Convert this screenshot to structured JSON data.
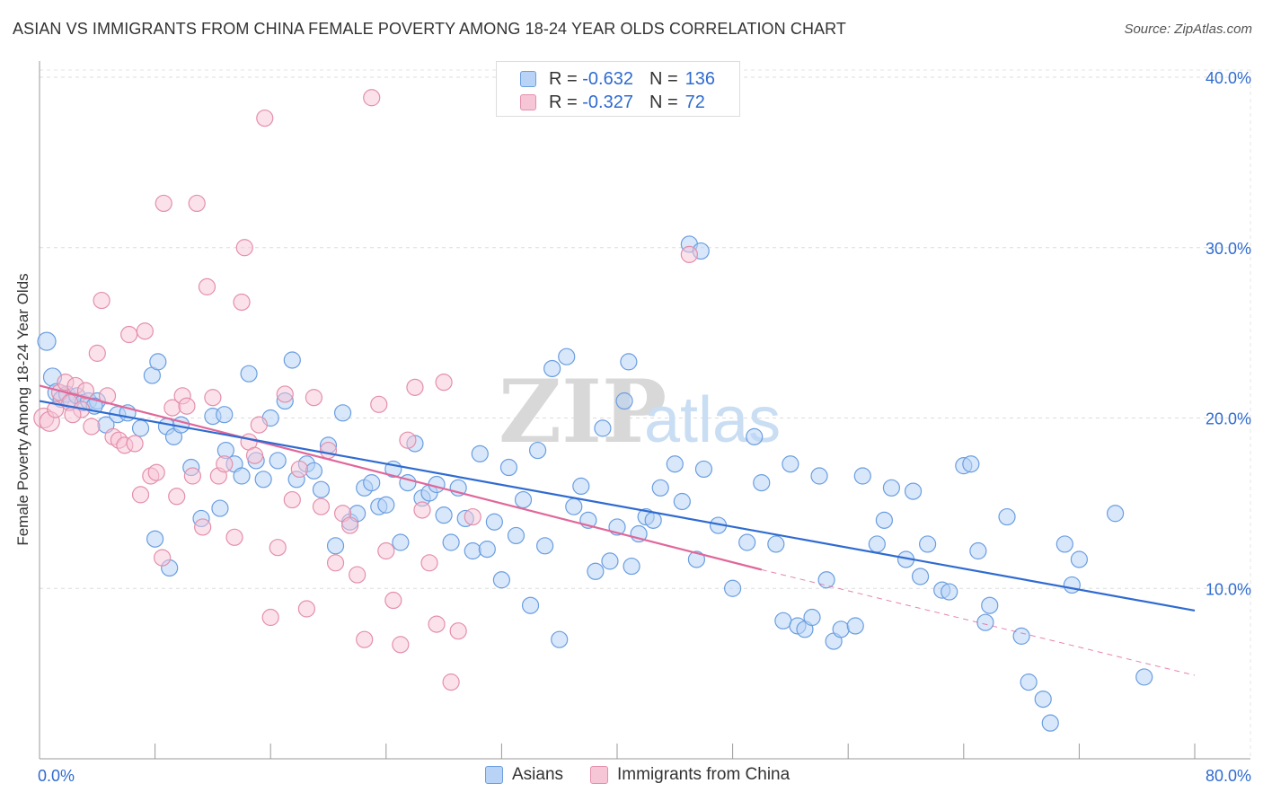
{
  "title": "ASIAN VS IMMIGRANTS FROM CHINA FEMALE POVERTY AMONG 18-24 YEAR OLDS CORRELATION CHART",
  "source": "Source: ZipAtlas.com",
  "watermark": "ZIPatlas",
  "legend": {
    "r_label": "R =",
    "n_label": "N =",
    "rows": [
      {
        "name": "Asians",
        "r": "-0.632",
        "n": "136",
        "fill": "#b8d3f5",
        "stroke": "#6a9ee0"
      },
      {
        "name": "Immigrants from China",
        "r": "-0.327",
        "n": "72",
        "fill": "#f7c6d6",
        "stroke": "#e48fab"
      }
    ]
  },
  "chart_data": {
    "type": "scatter",
    "title": "ASIAN VS IMMIGRANTS FROM CHINA FEMALE POVERTY AMONG 18-24 YEAR OLDS CORRELATION CHART",
    "xlabel": "",
    "ylabel": "Female Poverty Among 18-24 Year Olds",
    "xlim": [
      0,
      80
    ],
    "ylim": [
      0,
      40
    ],
    "x_tick_labels": [
      "0.0%",
      "80.0%"
    ],
    "y_ticks": [
      10,
      20,
      30,
      40
    ],
    "y_tick_labels": [
      "10.0%",
      "20.0%",
      "30.0%",
      "40.0%"
    ],
    "grid": true,
    "legend_position": "top-center",
    "series": [
      {
        "name": "Asians",
        "color": "#6a9ee0",
        "fill": "#b8d3f5",
        "trend": {
          "x0": 0,
          "y0": 21.0,
          "x1": 80,
          "y1": 8.7,
          "color": "#2f6bd0"
        },
        "points": [
          [
            0.5,
            24.5
          ],
          [
            0.9,
            22.4
          ],
          [
            1.2,
            21.5
          ],
          [
            1.5,
            21.1
          ],
          [
            1.9,
            21.4
          ],
          [
            2.2,
            21.0
          ],
          [
            2.6,
            21.3
          ],
          [
            3.0,
            20.9
          ],
          [
            3.4,
            21.0
          ],
          [
            4.0,
            21.0
          ],
          [
            4.6,
            19.6
          ],
          [
            5.4,
            20.2
          ],
          [
            6.1,
            20.3
          ],
          [
            7.0,
            19.4
          ],
          [
            7.8,
            22.5
          ],
          [
            8.2,
            23.3
          ],
          [
            8.8,
            19.5
          ],
          [
            9.3,
            18.9
          ],
          [
            9.8,
            19.6
          ],
          [
            10.5,
            17.1
          ],
          [
            11.2,
            14.1
          ],
          [
            12.0,
            20.1
          ],
          [
            12.5,
            14.7
          ],
          [
            12.8,
            20.2
          ],
          [
            12.9,
            18.1
          ],
          [
            13.5,
            17.3
          ],
          [
            14.0,
            16.6
          ],
          [
            14.5,
            22.6
          ],
          [
            15.0,
            17.5
          ],
          [
            15.5,
            16.4
          ],
          [
            16.0,
            20.0
          ],
          [
            16.5,
            17.5
          ],
          [
            17.0,
            21.0
          ],
          [
            17.5,
            23.4
          ],
          [
            17.8,
            16.4
          ],
          [
            18.5,
            17.3
          ],
          [
            19.0,
            16.9
          ],
          [
            19.5,
            15.8
          ],
          [
            20.0,
            18.4
          ],
          [
            20.5,
            12.5
          ],
          [
            21.0,
            20.3
          ],
          [
            21.5,
            13.9
          ],
          [
            22.0,
            14.4
          ],
          [
            22.5,
            15.9
          ],
          [
            23.0,
            16.2
          ],
          [
            23.5,
            14.8
          ],
          [
            24.0,
            14.9
          ],
          [
            24.5,
            17.0
          ],
          [
            25.0,
            12.7
          ],
          [
            25.5,
            16.2
          ],
          [
            26.0,
            18.5
          ],
          [
            26.5,
            15.3
          ],
          [
            27.0,
            15.6
          ],
          [
            27.5,
            16.1
          ],
          [
            28.0,
            14.3
          ],
          [
            28.5,
            12.7
          ],
          [
            29.0,
            15.9
          ],
          [
            29.5,
            14.1
          ],
          [
            30.0,
            12.2
          ],
          [
            30.5,
            17.9
          ],
          [
            31.0,
            12.3
          ],
          [
            31.5,
            13.9
          ],
          [
            32.0,
            10.5
          ],
          [
            32.5,
            17.1
          ],
          [
            33.0,
            13.1
          ],
          [
            33.5,
            15.2
          ],
          [
            34.0,
            9.0
          ],
          [
            34.5,
            18.1
          ],
          [
            35.0,
            12.5
          ],
          [
            35.5,
            22.9
          ],
          [
            36.0,
            7.0
          ],
          [
            36.5,
            23.6
          ],
          [
            37.0,
            14.8
          ],
          [
            37.5,
            16.0
          ],
          [
            38.0,
            14.0
          ],
          [
            38.5,
            11.0
          ],
          [
            39.0,
            19.4
          ],
          [
            39.5,
            11.6
          ],
          [
            40.0,
            13.6
          ],
          [
            40.5,
            21.0
          ],
          [
            40.8,
            23.3
          ],
          [
            41.0,
            11.3
          ],
          [
            41.5,
            13.2
          ],
          [
            42.0,
            14.2
          ],
          [
            42.5,
            14.0
          ],
          [
            43.0,
            15.9
          ],
          [
            44.0,
            17.3
          ],
          [
            44.5,
            15.1
          ],
          [
            45.0,
            30.2
          ],
          [
            45.5,
            11.7
          ],
          [
            45.8,
            29.8
          ],
          [
            46.0,
            17.0
          ],
          [
            47.0,
            13.7
          ],
          [
            48.0,
            10.0
          ],
          [
            49.0,
            12.7
          ],
          [
            49.5,
            18.9
          ],
          [
            50.0,
            16.2
          ],
          [
            51.0,
            12.6
          ],
          [
            51.5,
            8.1
          ],
          [
            52.0,
            17.3
          ],
          [
            52.5,
            7.8
          ],
          [
            53.0,
            7.6
          ],
          [
            53.5,
            8.3
          ],
          [
            54.0,
            16.6
          ],
          [
            54.5,
            10.5
          ],
          [
            55.0,
            6.9
          ],
          [
            55.5,
            7.6
          ],
          [
            56.5,
            7.8
          ],
          [
            57.0,
            16.6
          ],
          [
            58.0,
            12.6
          ],
          [
            58.5,
            14.0
          ],
          [
            59.0,
            15.9
          ],
          [
            60.0,
            11.7
          ],
          [
            60.5,
            15.7
          ],
          [
            61.0,
            10.7
          ],
          [
            61.5,
            12.6
          ],
          [
            62.5,
            9.9
          ],
          [
            63.0,
            9.8
          ],
          [
            64.0,
            17.2
          ],
          [
            64.5,
            17.3
          ],
          [
            65.0,
            12.2
          ],
          [
            65.5,
            8.0
          ],
          [
            65.8,
            9.0
          ],
          [
            67.0,
            14.2
          ],
          [
            68.0,
            7.2
          ],
          [
            68.5,
            4.5
          ],
          [
            69.5,
            3.5
          ],
          [
            70.0,
            2.1
          ],
          [
            71.0,
            12.6
          ],
          [
            71.5,
            10.2
          ],
          [
            72.0,
            11.7
          ],
          [
            74.5,
            14.4
          ],
          [
            76.5,
            4.8
          ],
          [
            8.0,
            12.9
          ],
          [
            9.0,
            11.2
          ],
          [
            3.8,
            20.7
          ]
        ]
      },
      {
        "name": "Immigrants from China",
        "color": "#e48fab",
        "fill": "#f7c6d6",
        "trend": {
          "x0": 0,
          "y0": 21.9,
          "x1": 50,
          "y1": 11.1,
          "color": "#e0679a"
        },
        "trend_extension": {
          "x0": 50,
          "y0": 11.1,
          "x1": 80,
          "y1": 4.9
        },
        "points": [
          [
            0.3,
            20.0
          ],
          [
            0.7,
            19.8
          ],
          [
            1.1,
            20.5
          ],
          [
            1.4,
            21.5
          ],
          [
            1.8,
            22.1
          ],
          [
            2.1,
            20.9
          ],
          [
            2.5,
            21.9
          ],
          [
            2.9,
            20.5
          ],
          [
            3.2,
            21.6
          ],
          [
            3.6,
            19.5
          ],
          [
            4.0,
            23.8
          ],
          [
            4.3,
            26.9
          ],
          [
            4.7,
            21.3
          ],
          [
            5.1,
            18.9
          ],
          [
            5.5,
            18.7
          ],
          [
            5.9,
            18.4
          ],
          [
            6.2,
            24.9
          ],
          [
            6.6,
            18.5
          ],
          [
            7.0,
            15.5
          ],
          [
            7.3,
            25.1
          ],
          [
            7.7,
            16.6
          ],
          [
            8.1,
            16.8
          ],
          [
            8.5,
            11.8
          ],
          [
            8.6,
            32.6
          ],
          [
            9.2,
            20.6
          ],
          [
            9.5,
            15.4
          ],
          [
            9.9,
            21.3
          ],
          [
            10.2,
            20.7
          ],
          [
            10.6,
            16.6
          ],
          [
            10.9,
            32.6
          ],
          [
            11.3,
            13.6
          ],
          [
            11.6,
            27.7
          ],
          [
            12.0,
            21.2
          ],
          [
            12.4,
            16.6
          ],
          [
            12.8,
            17.3
          ],
          [
            13.5,
            13.0
          ],
          [
            14.0,
            26.8
          ],
          [
            14.2,
            30.0
          ],
          [
            14.5,
            18.6
          ],
          [
            14.9,
            17.8
          ],
          [
            15.2,
            19.6
          ],
          [
            15.6,
            37.6
          ],
          [
            16.0,
            8.3
          ],
          [
            16.5,
            12.4
          ],
          [
            17.0,
            21.4
          ],
          [
            17.5,
            15.2
          ],
          [
            18.0,
            17.0
          ],
          [
            18.5,
            8.8
          ],
          [
            19.0,
            21.2
          ],
          [
            19.5,
            14.8
          ],
          [
            20.0,
            18.1
          ],
          [
            20.5,
            11.5
          ],
          [
            21.0,
            14.4
          ],
          [
            21.5,
            13.7
          ],
          [
            22.0,
            10.8
          ],
          [
            22.5,
            7.0
          ],
          [
            23.0,
            38.8
          ],
          [
            23.5,
            20.8
          ],
          [
            24.0,
            12.2
          ],
          [
            24.5,
            9.3
          ],
          [
            25.0,
            6.7
          ],
          [
            25.5,
            18.7
          ],
          [
            26.0,
            21.8
          ],
          [
            26.5,
            14.6
          ],
          [
            27.0,
            11.5
          ],
          [
            27.5,
            7.9
          ],
          [
            28.0,
            22.1
          ],
          [
            28.5,
            4.5
          ],
          [
            29.0,
            7.5
          ],
          [
            30.0,
            14.2
          ],
          [
            45.0,
            29.6
          ],
          [
            2.3,
            20.2
          ]
        ]
      }
    ]
  }
}
